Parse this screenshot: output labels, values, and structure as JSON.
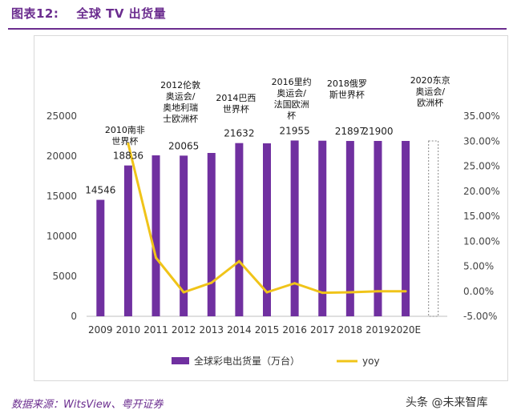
{
  "header": {
    "figure_label": "图表12:",
    "title": "全球 TV 出货量"
  },
  "chart_data": {
    "type": "bar+line",
    "categories": [
      "2009",
      "2010",
      "2011",
      "2012",
      "2013",
      "2014",
      "2015",
      "2016",
      "2017",
      "2018",
      "2019",
      "2020E",
      ""
    ],
    "series": [
      {
        "name": "全球彩电出货量（万台）",
        "axis": "left",
        "color": "#7030a0",
        "values": [
          14546,
          18836,
          20100,
          20065,
          20400,
          21632,
          21600,
          21955,
          21930,
          21897,
          21900,
          21900,
          null
        ]
      },
      {
        "name": "yoy",
        "axis": "right",
        "color": "#f0c419",
        "values": [
          null,
          29.5,
          6.7,
          -0.2,
          1.7,
          6.0,
          -0.2,
          1.6,
          -0.3,
          -0.2,
          0.0,
          0.0,
          null
        ]
      }
    ],
    "placeholder_bar_index": 12,
    "data_labels": [
      {
        "index": 0,
        "text": "14546"
      },
      {
        "index": 1,
        "text": "18836"
      },
      {
        "index": 3,
        "text": "20065"
      },
      {
        "index": 5,
        "text": "21632"
      },
      {
        "index": 7,
        "text": "21955"
      },
      {
        "index": 9,
        "text": "21897"
      },
      {
        "index": 10,
        "text": "21900"
      }
    ],
    "annotations": [
      {
        "index": 1,
        "lines": [
          "2010南非",
          "世界杯"
        ]
      },
      {
        "index": 3,
        "lines": [
          "2012伦敦",
          "奥运会/",
          "奥地利瑞",
          "士欧洲杯"
        ]
      },
      {
        "index": 5,
        "lines": [
          "2014巴西",
          "世界杯"
        ]
      },
      {
        "index": 7,
        "lines": [
          "2016里约",
          "奥运会/",
          "法国欧洲",
          "杯"
        ]
      },
      {
        "index": 9,
        "lines": [
          "2018俄罗",
          "斯世界杯"
        ]
      },
      {
        "index": 12,
        "lines": [
          "2020东京",
          "奥运会/",
          "欧洲杯"
        ]
      }
    ],
    "y_left": {
      "min": 0,
      "max": 25000,
      "ticks": [
        "0",
        "5000",
        "10000",
        "15000",
        "20000",
        "25000"
      ]
    },
    "y_right": {
      "min": -5,
      "max": 35,
      "ticks": [
        "-5.00%",
        "0.00%",
        "5.00%",
        "10.00%",
        "15.00%",
        "20.00%",
        "25.00%",
        "30.00%",
        "35.00%"
      ]
    },
    "grid": false,
    "legend_position": "bottom"
  },
  "footer": {
    "source": "数据来源：WitsView、粤开证券",
    "watermark": "头条 @未来智库"
  }
}
